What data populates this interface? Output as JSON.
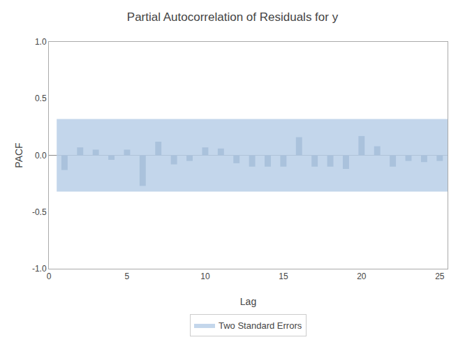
{
  "chart_data": {
    "type": "bar",
    "title": "Partial Autocorrelation of Residuals for y",
    "x_label": "Lag",
    "y_label": "PACF",
    "x": [
      1,
      2,
      3,
      4,
      5,
      6,
      7,
      8,
      9,
      10,
      11,
      12,
      13,
      14,
      15,
      16,
      17,
      18,
      19,
      20,
      21,
      22,
      23,
      24,
      25
    ],
    "values": [
      -0.13,
      0.07,
      0.05,
      -0.04,
      0.05,
      -0.27,
      0.12,
      -0.08,
      -0.05,
      0.07,
      0.06,
      -0.07,
      -0.1,
      -0.1,
      -0.1,
      0.16,
      -0.1,
      -0.1,
      -0.12,
      0.17,
      0.08,
      -0.1,
      -0.05,
      -0.06,
      -0.05
    ],
    "color": "#5b7a9d",
    "band": {
      "name": "Two Standard Errors",
      "lower": -0.32,
      "upper": 0.32,
      "x_start": 0.5,
      "x_end": 25.5,
      "color": "#b8cfe8"
    },
    "xlim": [
      0,
      25.5
    ],
    "xticks": [
      0,
      5,
      10,
      15,
      20,
      25
    ],
    "ylim": [
      -1.0,
      1.0
    ],
    "yticks": [
      -1.0,
      -0.5,
      0.0,
      0.5,
      1.0
    ],
    "grid": false,
    "legend": "bottom"
  }
}
